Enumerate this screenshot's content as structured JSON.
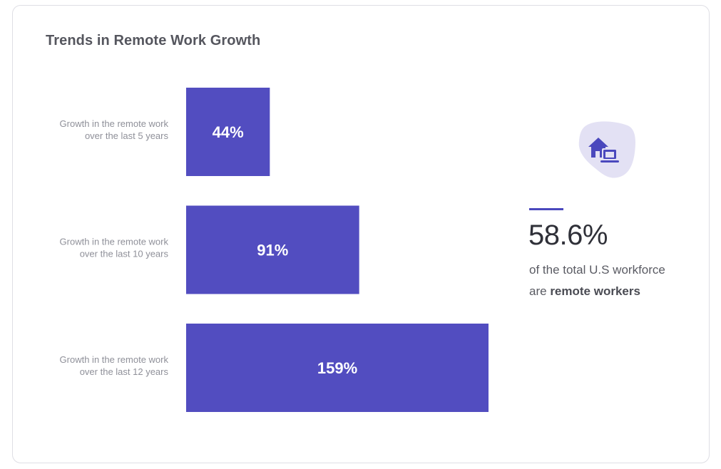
{
  "chart_data": {
    "type": "bar",
    "orientation": "horizontal",
    "title": "Trends in Remote Work Growth",
    "categories": [
      [
        "Growth in the remote work",
        "over the last 5 years"
      ],
      [
        "Growth in the remote work",
        "over the last 10 years"
      ],
      [
        "Growth in the remote work",
        "over the last 12 years"
      ]
    ],
    "values": [
      44,
      91,
      159
    ],
    "value_labels": [
      "44%",
      "91%",
      "159%"
    ],
    "xlim": [
      0,
      159
    ],
    "grid": false,
    "legend": "none",
    "bar_color": "#524dc0"
  },
  "stat": {
    "value": "58.6%",
    "text_prefix": "of the total U.S workforce",
    "text_are": "are",
    "text_bold": "remote workers",
    "icon": "house-laptop-icon",
    "accent_color": "#4a48bd",
    "blob_color": "#e3e1f4"
  }
}
